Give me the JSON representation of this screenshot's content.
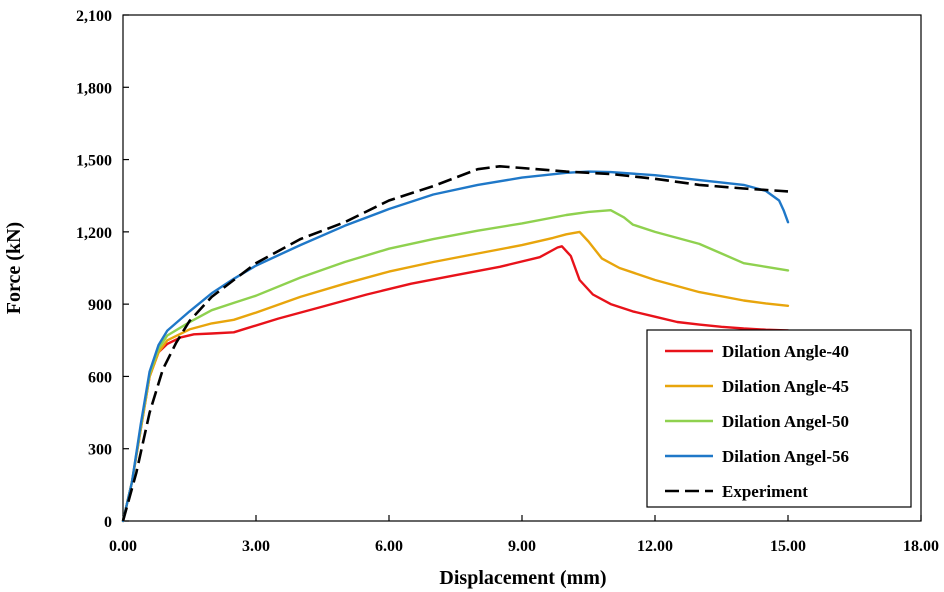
{
  "chart_data": {
    "type": "line",
    "xlabel": "Displacement (mm)",
    "ylabel": "Force (kN)",
    "xlim": [
      0,
      18
    ],
    "ylim": [
      0,
      2100
    ],
    "xticks": [
      "0.00",
      "3.00",
      "6.00",
      "9.00",
      "12.00",
      "15.00",
      "18.00"
    ],
    "yticks": [
      "0",
      "300",
      "600",
      "900",
      "1,200",
      "1,500",
      "1,800",
      "2,100"
    ],
    "grid": false,
    "legend_position": "bottom-right",
    "series": [
      {
        "name": "Dilation Angle-40",
        "color": "#e8121a",
        "dash": "solid",
        "points": [
          [
            0,
            0
          ],
          [
            0.2,
            160
          ],
          [
            0.4,
            380
          ],
          [
            0.6,
            600
          ],
          [
            0.8,
            700
          ],
          [
            1.0,
            735
          ],
          [
            1.3,
            762
          ],
          [
            1.6,
            775
          ],
          [
            2.0,
            778
          ],
          [
            2.5,
            783
          ],
          [
            2.8,
            800
          ],
          [
            3.5,
            840
          ],
          [
            4.5,
            890
          ],
          [
            5.5,
            940
          ],
          [
            6.5,
            985
          ],
          [
            7.5,
            1020
          ],
          [
            8.5,
            1055
          ],
          [
            9.4,
            1095
          ],
          [
            9.8,
            1135
          ],
          [
            9.9,
            1140
          ],
          [
            10.1,
            1100
          ],
          [
            10.3,
            1000
          ],
          [
            10.6,
            940
          ],
          [
            11.0,
            900
          ],
          [
            11.5,
            870
          ],
          [
            12.0,
            848
          ],
          [
            12.5,
            826
          ],
          [
            13.0,
            815
          ],
          [
            13.5,
            806
          ],
          [
            14.0,
            799
          ],
          [
            14.5,
            794
          ],
          [
            15.0,
            791
          ]
        ]
      },
      {
        "name": "Dilation Angle-45",
        "color": "#e8a50c",
        "dash": "solid",
        "points": [
          [
            0,
            0
          ],
          [
            0.2,
            160
          ],
          [
            0.4,
            380
          ],
          [
            0.6,
            600
          ],
          [
            0.8,
            700
          ],
          [
            1.0,
            750
          ],
          [
            1.5,
            795
          ],
          [
            2.0,
            820
          ],
          [
            2.5,
            835
          ],
          [
            3.0,
            865
          ],
          [
            4.0,
            930
          ],
          [
            5.0,
            985
          ],
          [
            6.0,
            1035
          ],
          [
            7.0,
            1075
          ],
          [
            8.0,
            1110
          ],
          [
            9.0,
            1145
          ],
          [
            9.7,
            1175
          ],
          [
            10.0,
            1190
          ],
          [
            10.3,
            1200
          ],
          [
            10.5,
            1160
          ],
          [
            10.8,
            1090
          ],
          [
            11.2,
            1050
          ],
          [
            12.0,
            1000
          ],
          [
            13.0,
            950
          ],
          [
            14.0,
            915
          ],
          [
            14.5,
            903
          ],
          [
            15.0,
            893
          ]
        ]
      },
      {
        "name": "Dilation Angel-50",
        "color": "#8fd14f",
        "dash": "solid",
        "points": [
          [
            0,
            0
          ],
          [
            0.2,
            160
          ],
          [
            0.4,
            390
          ],
          [
            0.6,
            610
          ],
          [
            0.8,
            715
          ],
          [
            1.0,
            770
          ],
          [
            1.5,
            825
          ],
          [
            2.0,
            875
          ],
          [
            2.5,
            905
          ],
          [
            3.0,
            935
          ],
          [
            4.0,
            1010
          ],
          [
            5.0,
            1075
          ],
          [
            6.0,
            1130
          ],
          [
            7.0,
            1170
          ],
          [
            8.0,
            1205
          ],
          [
            9.0,
            1235
          ],
          [
            10.0,
            1270
          ],
          [
            10.5,
            1283
          ],
          [
            11.0,
            1290
          ],
          [
            11.3,
            1260
          ],
          [
            11.5,
            1230
          ],
          [
            12.0,
            1200
          ],
          [
            13.0,
            1150
          ],
          [
            13.5,
            1110
          ],
          [
            14.0,
            1070
          ],
          [
            14.5,
            1055
          ],
          [
            15.0,
            1040
          ]
        ]
      },
      {
        "name": "Dilation Angel-56",
        "color": "#1f78c8",
        "dash": "solid",
        "points": [
          [
            0,
            0
          ],
          [
            0.2,
            160
          ],
          [
            0.4,
            400
          ],
          [
            0.6,
            620
          ],
          [
            0.8,
            730
          ],
          [
            1.0,
            790
          ],
          [
            1.5,
            870
          ],
          [
            2.0,
            945
          ],
          [
            2.5,
            1005
          ],
          [
            3.0,
            1060
          ],
          [
            4.0,
            1145
          ],
          [
            5.0,
            1225
          ],
          [
            6.0,
            1295
          ],
          [
            7.0,
            1355
          ],
          [
            8.0,
            1395
          ],
          [
            9.0,
            1425
          ],
          [
            10.0,
            1445
          ],
          [
            10.5,
            1450
          ],
          [
            11.0,
            1448
          ],
          [
            12.0,
            1435
          ],
          [
            13.0,
            1415
          ],
          [
            14.0,
            1395
          ],
          [
            14.5,
            1370
          ],
          [
            14.8,
            1330
          ],
          [
            14.9,
            1290
          ],
          [
            15.0,
            1240
          ]
        ]
      },
      {
        "name": "Experiment",
        "color": "#000000",
        "dash": "dashed",
        "points": [
          [
            0,
            0
          ],
          [
            0.3,
            200
          ],
          [
            0.6,
            450
          ],
          [
            0.9,
            630
          ],
          [
            1.2,
            740
          ],
          [
            1.5,
            830
          ],
          [
            2.0,
            930
          ],
          [
            2.5,
            1000
          ],
          [
            3.0,
            1070
          ],
          [
            4.0,
            1170
          ],
          [
            5.0,
            1240
          ],
          [
            6.0,
            1330
          ],
          [
            7.0,
            1390
          ],
          [
            8.0,
            1460
          ],
          [
            8.5,
            1472
          ],
          [
            9.0,
            1465
          ],
          [
            10.0,
            1450
          ],
          [
            11.0,
            1440
          ],
          [
            12.0,
            1420
          ],
          [
            13.0,
            1395
          ],
          [
            14.0,
            1380
          ],
          [
            15.0,
            1368
          ]
        ]
      }
    ]
  }
}
